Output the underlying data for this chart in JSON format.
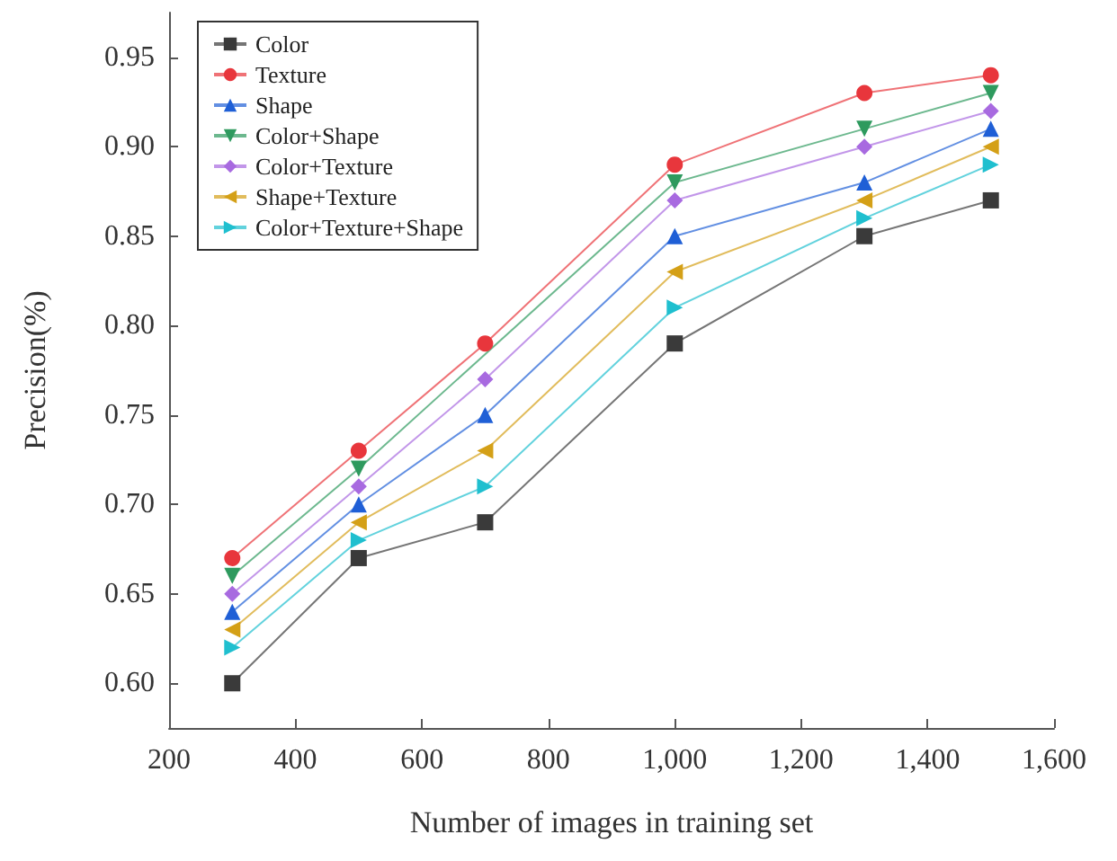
{
  "chart_data": {
    "type": "line",
    "xlabel": "Number of images in training set",
    "ylabel": "Precision(%)",
    "x": [
      300,
      500,
      700,
      1000,
      1300,
      1500
    ],
    "series": [
      {
        "name": "Color",
        "color": "#3a3a3a",
        "marker": "square",
        "values": [
          0.6,
          0.67,
          0.69,
          0.79,
          0.85,
          0.87
        ]
      },
      {
        "name": "Texture",
        "color": "#e8363c",
        "marker": "circle",
        "values": [
          0.67,
          0.73,
          0.79,
          0.89,
          0.93,
          0.94
        ]
      },
      {
        "name": "Shape",
        "color": "#1f5fd6",
        "marker": "triangle",
        "values": [
          0.64,
          0.7,
          0.75,
          0.85,
          0.88,
          0.91
        ]
      },
      {
        "name": "Color+Shape",
        "color": "#2e9a5e",
        "marker": "triangle-down",
        "values": [
          0.66,
          0.72,
          null,
          0.88,
          0.91,
          0.93
        ]
      },
      {
        "name": "Color+Texture",
        "color": "#a86ae0",
        "marker": "diamond",
        "values": [
          0.65,
          0.71,
          0.77,
          0.87,
          0.9,
          0.92
        ]
      },
      {
        "name": "Shape+Texture",
        "color": "#d4a017",
        "marker": "triangle-left",
        "values": [
          0.63,
          0.69,
          0.73,
          0.83,
          0.87,
          0.9
        ]
      },
      {
        "name": "Color+Texture+Shape",
        "color": "#1fbfcf",
        "marker": "triangle-right",
        "values": [
          0.62,
          0.68,
          0.71,
          0.81,
          0.86,
          0.89
        ]
      }
    ],
    "xlim": [
      200,
      1600
    ],
    "xticks": [
      200,
      400,
      600,
      800,
      {
        "value": 1000,
        "label": "1,000"
      },
      {
        "value": 1200,
        "label": "1,200"
      },
      {
        "value": 1400,
        "label": "1,400"
      },
      {
        "value": 1600,
        "label": "1,600"
      }
    ],
    "ylim": [
      0.575,
      0.975
    ],
    "yticks": [
      {
        "value": 0.6,
        "label": "0.60"
      },
      {
        "value": 0.65,
        "label": "0.65"
      },
      {
        "value": 0.7,
        "label": "0.70"
      },
      {
        "value": 0.75,
        "label": "0.75"
      },
      {
        "value": 0.8,
        "label": "0.80"
      },
      {
        "value": 0.85,
        "label": "0.85"
      },
      {
        "value": 0.9,
        "label": "0.90"
      },
      {
        "value": 0.95,
        "label": "0.95"
      }
    ],
    "grid": false,
    "legend": "top left",
    "line_style": "solid"
  }
}
